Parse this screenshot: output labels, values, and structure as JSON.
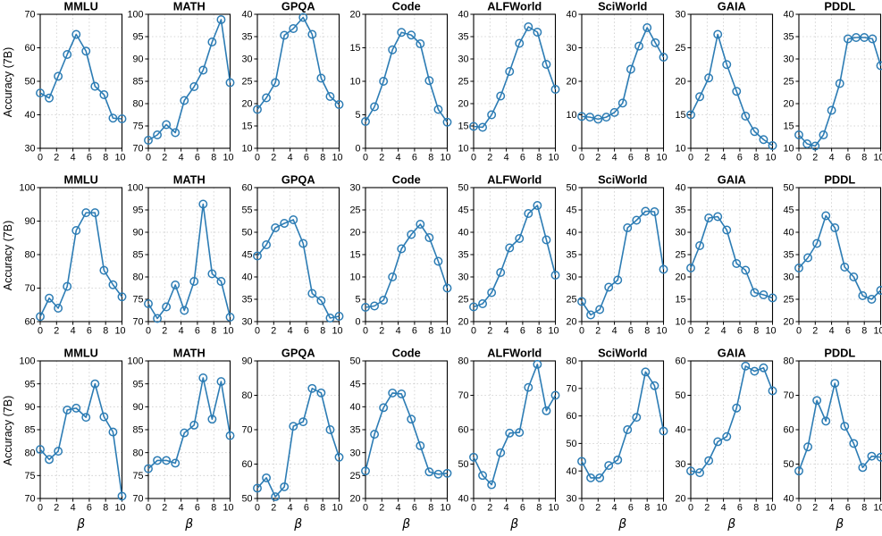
{
  "figure": {
    "ylabel": "Accuracy (7B)",
    "xlabel": "β",
    "xlim": [
      0,
      10
    ],
    "xticks": [
      0,
      2,
      4,
      6,
      8,
      10
    ],
    "rows": 3,
    "cols": 8,
    "line_color": "#2c7cb4",
    "grid_color": "#c9c9c9",
    "axis_color": "#000000",
    "marker": "open-circle",
    "grid_style": "dotted"
  },
  "chart_data": [
    {
      "type": "line",
      "row": 1,
      "col": 1,
      "title": "MMLU",
      "ylim": [
        30,
        70
      ],
      "yticks": [
        30,
        40,
        50,
        60,
        70
      ],
      "x": [
        0,
        1.1,
        2.2,
        3.3,
        4.4,
        5.6,
        6.7,
        7.8,
        8.9,
        10
      ],
      "values": [
        46.5,
        45,
        51.5,
        58,
        64,
        59,
        48.5,
        46,
        39,
        38.8
      ]
    },
    {
      "type": "line",
      "row": 1,
      "col": 2,
      "title": "MATH",
      "ylim": [
        70,
        100
      ],
      "yticks": [
        70,
        75,
        80,
        85,
        90,
        95,
        100
      ],
      "x": [
        0,
        1.1,
        2.2,
        3.3,
        4.4,
        5.6,
        6.7,
        7.8,
        8.9,
        10
      ],
      "values": [
        71.8,
        73,
        75.3,
        73.5,
        80.7,
        83.8,
        87.5,
        93.8,
        98.8,
        84.7
      ]
    },
    {
      "type": "line",
      "row": 1,
      "col": 3,
      "title": "GPQA",
      "ylim": [
        10,
        40
      ],
      "yticks": [
        10,
        15,
        20,
        25,
        30,
        35,
        40
      ],
      "x": [
        0,
        1.1,
        2.2,
        3.3,
        4.4,
        5.6,
        6.7,
        7.8,
        8.9,
        10
      ],
      "values": [
        18.7,
        21.3,
        24.7,
        35.3,
        36.8,
        39.3,
        35.5,
        25.7,
        21.6,
        19.8
      ]
    },
    {
      "type": "line",
      "row": 1,
      "col": 4,
      "title": "Code",
      "ylim": [
        0,
        20
      ],
      "yticks": [
        0,
        5,
        10,
        15,
        20
      ],
      "x": [
        0,
        1.1,
        2.2,
        3.3,
        4.4,
        5.6,
        6.7,
        7.8,
        8.9,
        10
      ],
      "values": [
        4,
        6.2,
        10,
        14.7,
        17.3,
        16.9,
        15.6,
        10.1,
        5.8,
        3.9
      ]
    },
    {
      "type": "line",
      "row": 1,
      "col": 5,
      "title": "ALFWorld",
      "ylim": [
        10,
        40
      ],
      "yticks": [
        10,
        15,
        20,
        25,
        30,
        35,
        40
      ],
      "x": [
        0,
        1.1,
        2.2,
        3.3,
        4.4,
        5.6,
        6.7,
        7.8,
        8.9,
        10
      ],
      "values": [
        14.9,
        14.7,
        17.5,
        21.7,
        27.2,
        33.5,
        37.2,
        36,
        28.8,
        23.2
      ]
    },
    {
      "type": "line",
      "row": 1,
      "col": 6,
      "title": "SciWorld",
      "ylim": [
        0,
        40
      ],
      "yticks": [
        0,
        10,
        20,
        30,
        40
      ],
      "x": [
        0,
        1,
        2,
        3,
        4,
        5,
        6,
        7,
        8,
        9,
        10
      ],
      "values": [
        9.5,
        9.3,
        8.7,
        9.3,
        10.7,
        13.5,
        23.6,
        30.5,
        36,
        31.5,
        27.2
      ]
    },
    {
      "type": "line",
      "row": 1,
      "col": 7,
      "title": "GAIA",
      "ylim": [
        10,
        30
      ],
      "yticks": [
        10,
        15,
        20,
        25,
        30
      ],
      "x": [
        0,
        1.1,
        2.2,
        3.3,
        4.4,
        5.6,
        6.7,
        7.8,
        8.9,
        10
      ],
      "values": [
        15,
        17.7,
        20.5,
        27,
        22.5,
        18.5,
        14.8,
        12.5,
        11.3,
        10.4
      ]
    },
    {
      "type": "line",
      "row": 1,
      "col": 8,
      "title": "PDDL",
      "ylim": [
        10,
        40
      ],
      "yticks": [
        10,
        15,
        20,
        25,
        30,
        35,
        40
      ],
      "x": [
        0,
        1,
        2,
        3,
        4,
        5,
        6,
        7,
        8,
        9,
        10
      ],
      "values": [
        13,
        11,
        10.5,
        13,
        18.5,
        24.5,
        34.5,
        34.8,
        34.8,
        34.5,
        28.5
      ]
    },
    {
      "type": "line",
      "row": 2,
      "col": 1,
      "title": "MMLU",
      "ylim": [
        60,
        100
      ],
      "yticks": [
        60,
        70,
        80,
        90,
        100
      ],
      "x": [
        0,
        1.1,
        2.2,
        3.3,
        4.4,
        5.6,
        6.7,
        7.8,
        8.9,
        10
      ],
      "values": [
        61.5,
        67,
        64,
        70.5,
        87.2,
        92.5,
        92.5,
        75.3,
        71,
        67.4
      ]
    },
    {
      "type": "line",
      "row": 2,
      "col": 2,
      "title": "MATH",
      "ylim": [
        70,
        100
      ],
      "yticks": [
        70,
        75,
        80,
        85,
        90,
        95,
        100
      ],
      "x": [
        0,
        1.1,
        2.2,
        3.3,
        4.4,
        5.6,
        6.7,
        7.8,
        8.9,
        10
      ],
      "values": [
        74,
        70.7,
        73.3,
        78.2,
        72.5,
        79,
        96.3,
        80.7,
        79,
        71
      ]
    },
    {
      "type": "line",
      "row": 2,
      "col": 3,
      "title": "GPQA",
      "ylim": [
        30,
        60
      ],
      "yticks": [
        30,
        35,
        40,
        45,
        50,
        55,
        60
      ],
      "x": [
        0,
        1.1,
        2.2,
        3.3,
        4.4,
        5.6,
        6.7,
        7.8,
        8.9,
        10
      ],
      "values": [
        44.7,
        47.2,
        51,
        52,
        52.8,
        47.5,
        36.3,
        34.7,
        30.8,
        31.2
      ]
    },
    {
      "type": "line",
      "row": 2,
      "col": 4,
      "title": "Code",
      "ylim": [
        0,
        30
      ],
      "yticks": [
        0,
        5,
        10,
        15,
        20,
        25,
        30
      ],
      "x": [
        0,
        1.1,
        2.2,
        3.3,
        4.4,
        5.6,
        6.7,
        7.8,
        8.9,
        10
      ],
      "values": [
        3.2,
        3.5,
        4.8,
        10,
        16.3,
        19.5,
        21.8,
        18.8,
        13.5,
        7.5
      ]
    },
    {
      "type": "line",
      "row": 2,
      "col": 5,
      "title": "ALFWorld",
      "ylim": [
        20,
        50
      ],
      "yticks": [
        20,
        25,
        30,
        35,
        40,
        45,
        50
      ],
      "x": [
        0,
        1.1,
        2.2,
        3.3,
        4.4,
        5.6,
        6.7,
        7.8,
        8.9,
        10
      ],
      "values": [
        23.3,
        24,
        26.5,
        31,
        36.5,
        38.6,
        44.2,
        46,
        38.3,
        30.4
      ]
    },
    {
      "type": "line",
      "row": 2,
      "col": 6,
      "title": "SciWorld",
      "ylim": [
        20,
        50
      ],
      "yticks": [
        20,
        25,
        30,
        35,
        40,
        45,
        50
      ],
      "x": [
        0,
        1.1,
        2.2,
        3.3,
        4.4,
        5.6,
        6.7,
        7.8,
        8.9,
        10
      ],
      "values": [
        24.5,
        21.5,
        22.7,
        27.7,
        29.3,
        41,
        42.7,
        44.7,
        44.6,
        31.7
      ]
    },
    {
      "type": "line",
      "row": 2,
      "col": 7,
      "title": "GAIA",
      "ylim": [
        10,
        40
      ],
      "yticks": [
        10,
        15,
        20,
        25,
        30,
        35,
        40
      ],
      "x": [
        0,
        1.1,
        2.2,
        3.3,
        4.4,
        5.6,
        6.7,
        7.8,
        8.9,
        10
      ],
      "values": [
        22,
        27,
        33.2,
        33.5,
        30.5,
        23,
        21.5,
        16.5,
        16,
        15.3
      ]
    },
    {
      "type": "line",
      "row": 2,
      "col": 8,
      "title": "PDDL",
      "ylim": [
        20,
        50
      ],
      "yticks": [
        20,
        25,
        30,
        35,
        40,
        45,
        50
      ],
      "x": [
        0,
        1.1,
        2.2,
        3.3,
        4.4,
        5.6,
        6.7,
        7.8,
        8.9,
        10
      ],
      "values": [
        32,
        34.3,
        37.5,
        43.7,
        41,
        32.2,
        30,
        25.8,
        25,
        27
      ]
    },
    {
      "type": "line",
      "row": 3,
      "col": 1,
      "title": "MMLU",
      "ylim": [
        70,
        100
      ],
      "yticks": [
        70,
        75,
        80,
        85,
        90,
        95,
        100
      ],
      "x": [
        0,
        1.1,
        2.2,
        3.3,
        4.4,
        5.6,
        6.7,
        7.8,
        8.9,
        10
      ],
      "values": [
        80.7,
        78.5,
        80.3,
        89.3,
        89.7,
        87.7,
        95,
        87.8,
        84.5,
        70.5
      ]
    },
    {
      "type": "line",
      "row": 3,
      "col": 2,
      "title": "MATH",
      "ylim": [
        70,
        100
      ],
      "yticks": [
        70,
        75,
        80,
        85,
        90,
        95,
        100
      ],
      "x": [
        0,
        1.1,
        2.2,
        3.3,
        4.4,
        5.6,
        6.7,
        7.8,
        8.9,
        10
      ],
      "values": [
        76.5,
        78.3,
        78.3,
        77.7,
        84.3,
        86,
        96.3,
        87.3,
        95.5,
        83.7
      ]
    },
    {
      "type": "line",
      "row": 3,
      "col": 3,
      "title": "GPQA",
      "ylim": [
        50,
        90
      ],
      "yticks": [
        50,
        60,
        70,
        80,
        90
      ],
      "x": [
        0,
        1.1,
        2.2,
        3.3,
        4.4,
        5.6,
        6.7,
        7.8,
        8.9,
        10
      ],
      "values": [
        53,
        56,
        50.5,
        53.4,
        71,
        72.3,
        82,
        80.7,
        70,
        62
      ]
    },
    {
      "type": "line",
      "row": 3,
      "col": 4,
      "title": "Code",
      "ylim": [
        20,
        50
      ],
      "yticks": [
        20,
        25,
        30,
        35,
        40,
        45,
        50
      ],
      "x": [
        0,
        1.1,
        2.2,
        3.3,
        4.4,
        5.6,
        6.7,
        7.8,
        8.9,
        10
      ],
      "values": [
        26,
        34,
        39.8,
        43,
        42.8,
        37.3,
        31.5,
        25.8,
        25.3,
        25.5
      ]
    },
    {
      "type": "line",
      "row": 3,
      "col": 5,
      "title": "ALFWorld",
      "ylim": [
        40,
        80
      ],
      "yticks": [
        40,
        50,
        60,
        70,
        80
      ],
      "x": [
        0,
        1.1,
        2.2,
        3.3,
        4.4,
        5.6,
        6.7,
        7.8,
        8.9,
        10
      ],
      "values": [
        52,
        46.7,
        44,
        53.3,
        59,
        59.2,
        72.3,
        79,
        65.5,
        70
      ]
    },
    {
      "type": "line",
      "row": 3,
      "col": 6,
      "title": "SciWorld",
      "ylim": [
        30,
        80
      ],
      "yticks": [
        30,
        40,
        50,
        60,
        70,
        80
      ],
      "x": [
        0,
        1.1,
        2.2,
        3.3,
        4.4,
        5.6,
        6.7,
        7.8,
        8.9,
        10
      ],
      "values": [
        43.5,
        37.5,
        37.5,
        42,
        44,
        55,
        59.5,
        76,
        71,
        54.5
      ]
    },
    {
      "type": "line",
      "row": 3,
      "col": 7,
      "title": "GAIA",
      "ylim": [
        20,
        60
      ],
      "yticks": [
        20,
        30,
        40,
        50,
        60
      ],
      "x": [
        0,
        1.1,
        2.2,
        3.3,
        4.4,
        5.6,
        6.7,
        7.8,
        8.9,
        10
      ],
      "values": [
        28,
        27.5,
        31,
        36.5,
        38,
        46.3,
        58.5,
        57,
        58,
        51.3
      ]
    },
    {
      "type": "line",
      "row": 3,
      "col": 8,
      "title": "PDDL",
      "ylim": [
        40,
        80
      ],
      "yticks": [
        40,
        50,
        60,
        70,
        80
      ],
      "x": [
        0,
        1.1,
        2.2,
        3.3,
        4.4,
        5.6,
        6.7,
        7.8,
        8.9,
        10
      ],
      "values": [
        48,
        55,
        68.5,
        62.5,
        73.5,
        61,
        56,
        49,
        52.3,
        52
      ]
    }
  ]
}
